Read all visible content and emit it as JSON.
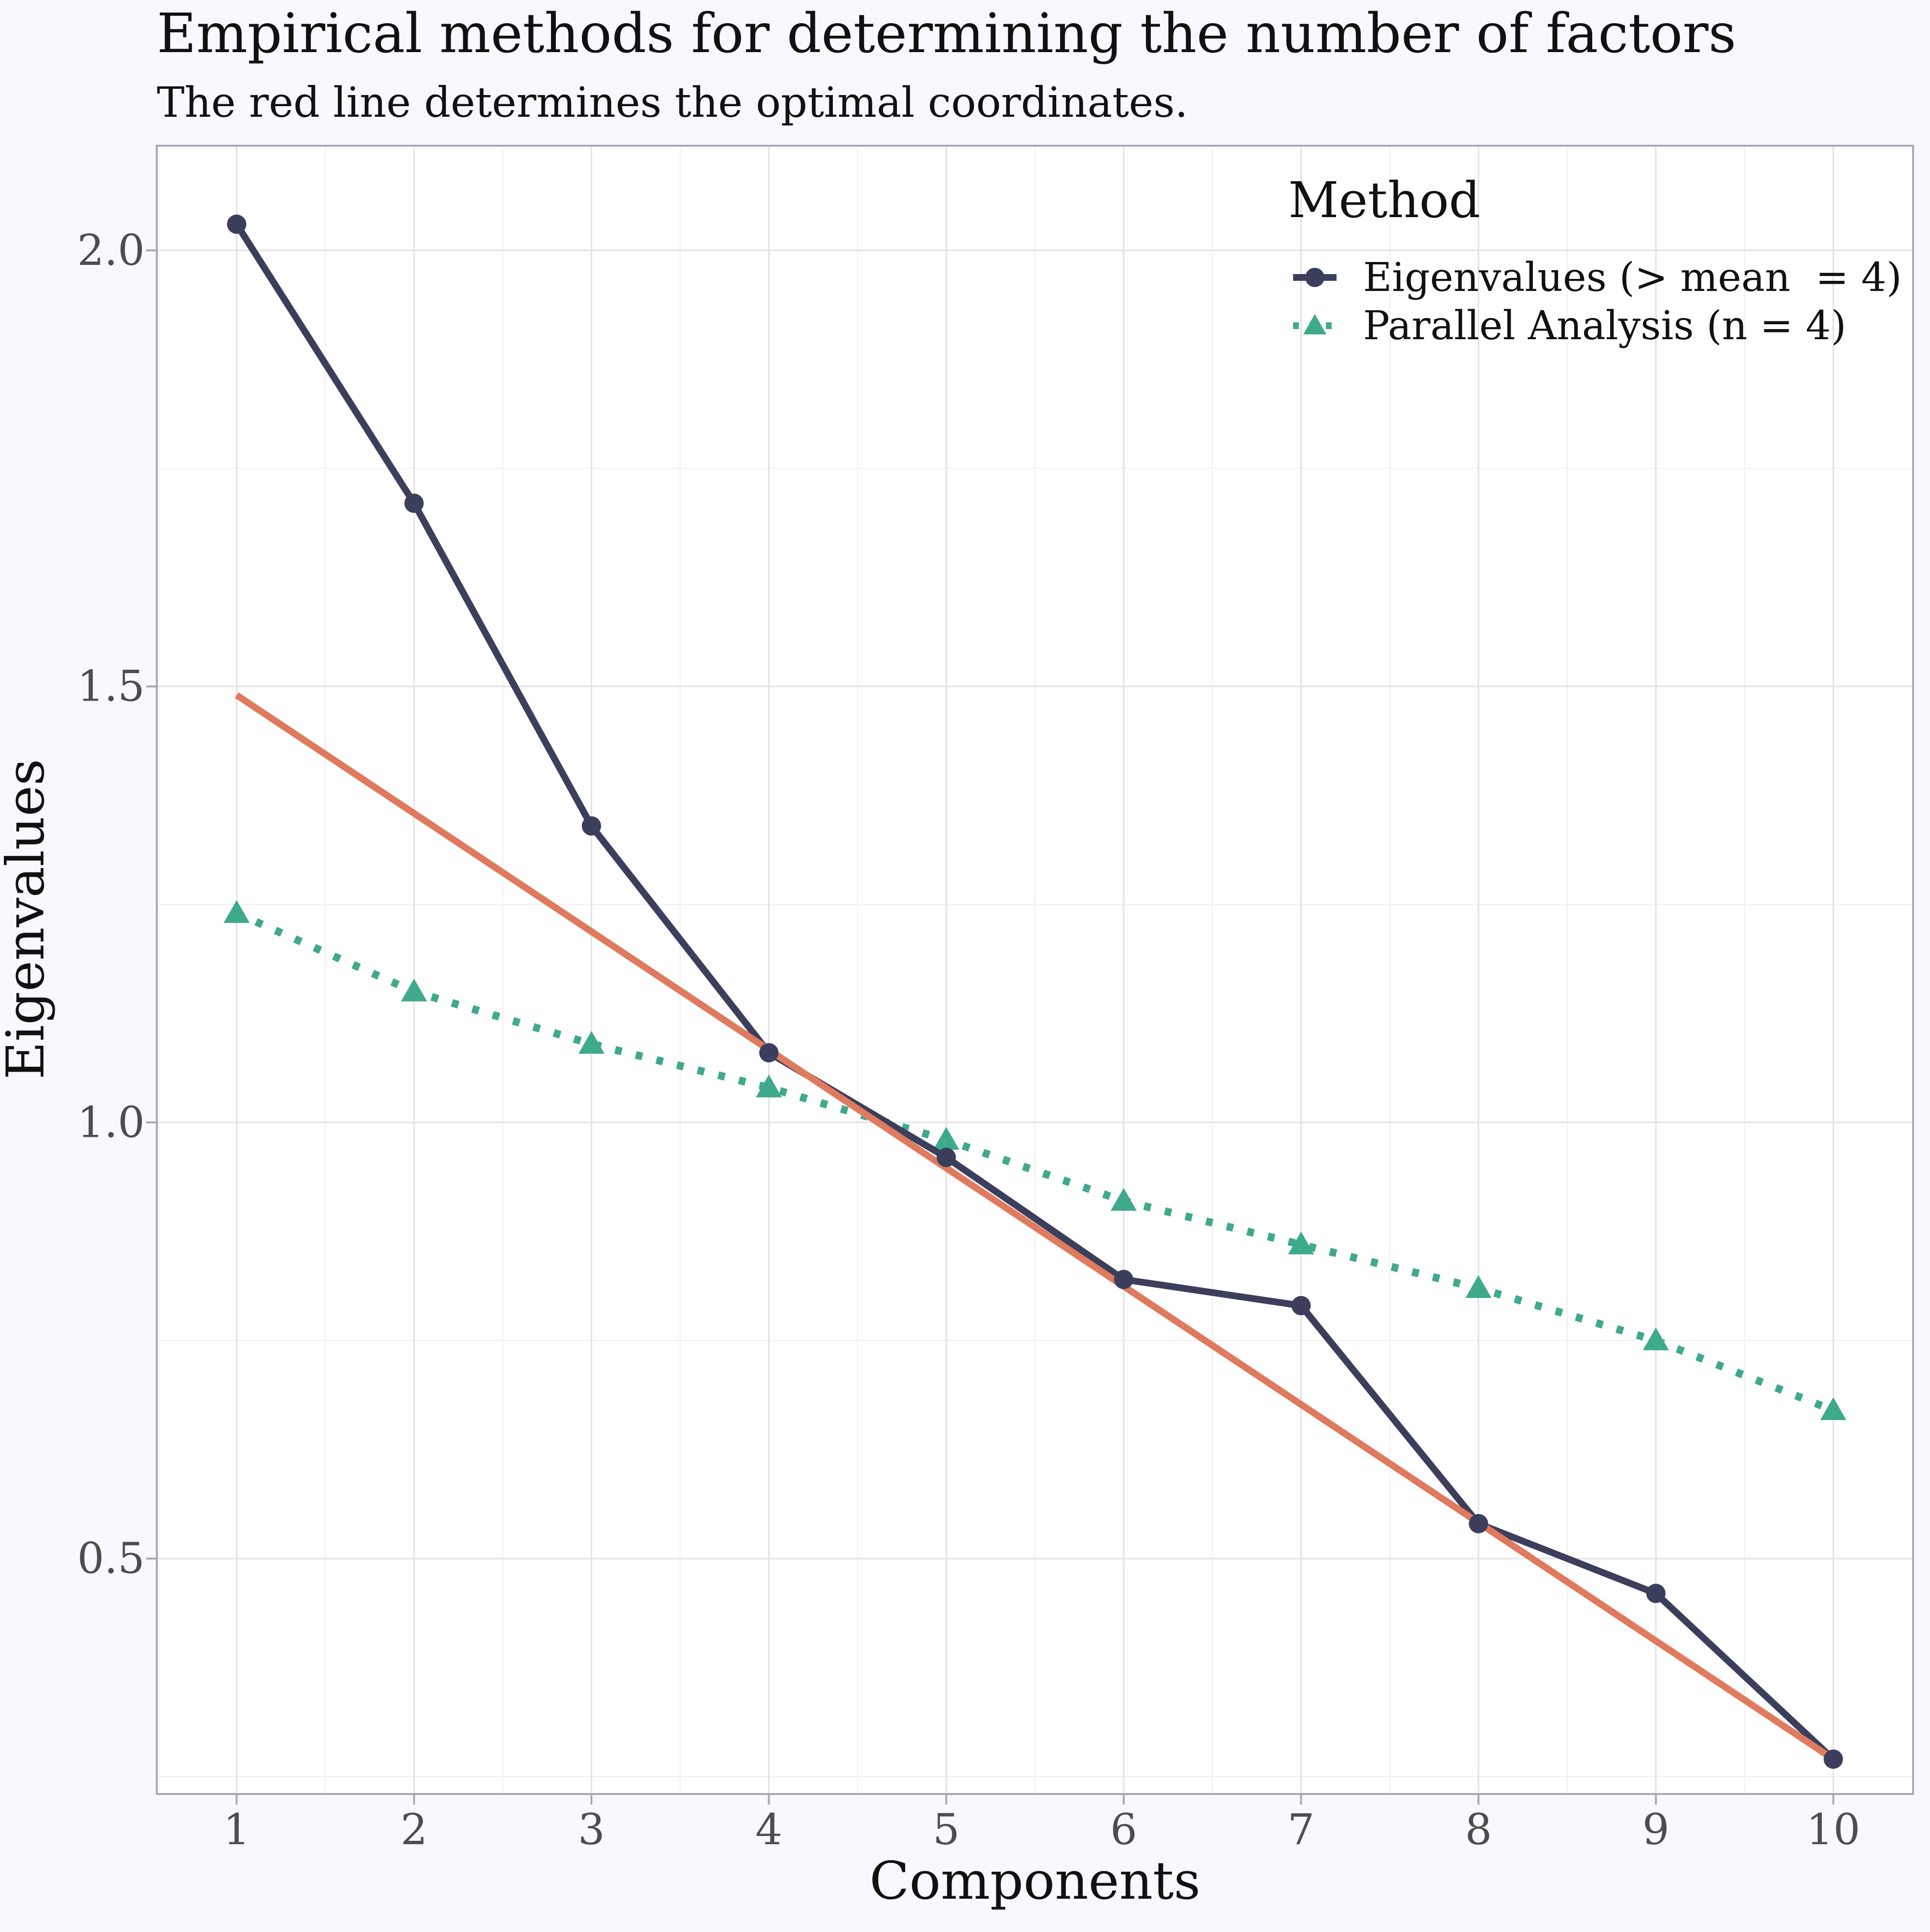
{
  "chart_data": {
    "type": "line",
    "title": "Empirical methods for determining the number of factors",
    "subtitle": "The red line determines the optimal coordinates.",
    "xlabel": "Components",
    "ylabel": "Eigenvalues",
    "x": [
      1,
      2,
      3,
      4,
      5,
      6,
      7,
      8,
      9,
      10
    ],
    "x_ticks": [
      "1",
      "2",
      "3",
      "4",
      "5",
      "6",
      "7",
      "8",
      "9",
      "10"
    ],
    "y_ticks": [
      "0.5",
      "1.0",
      "1.5",
      "2.0"
    ],
    "y_tick_values": [
      0.5,
      1.0,
      1.5,
      2.0
    ],
    "xlim": [
      0.55,
      10.45
    ],
    "ylim": [
      0.23,
      2.12
    ],
    "grid": true,
    "legend": {
      "title": "Method",
      "placement": "top-right"
    },
    "series": [
      {
        "name": "Eigenvalues (> mean  = 4)",
        "values": [
          2.03,
          1.71,
          1.34,
          1.08,
          0.96,
          0.82,
          0.79,
          0.54,
          0.46,
          0.27
        ],
        "color": "#3b3f5c",
        "marker": "circle",
        "line": "solid"
      },
      {
        "name": "Parallel Analysis (n = 4)",
        "values": [
          1.24,
          1.15,
          1.09,
          1.04,
          0.98,
          0.91,
          0.86,
          0.81,
          0.75,
          0.67
        ],
        "color": "#3fa98c",
        "marker": "triangle",
        "line": "dotted"
      }
    ],
    "optimal_coordinates_line": {
      "x": [
        1,
        10
      ],
      "y": [
        1.49,
        0.27
      ],
      "color": "#e07a5f"
    }
  }
}
